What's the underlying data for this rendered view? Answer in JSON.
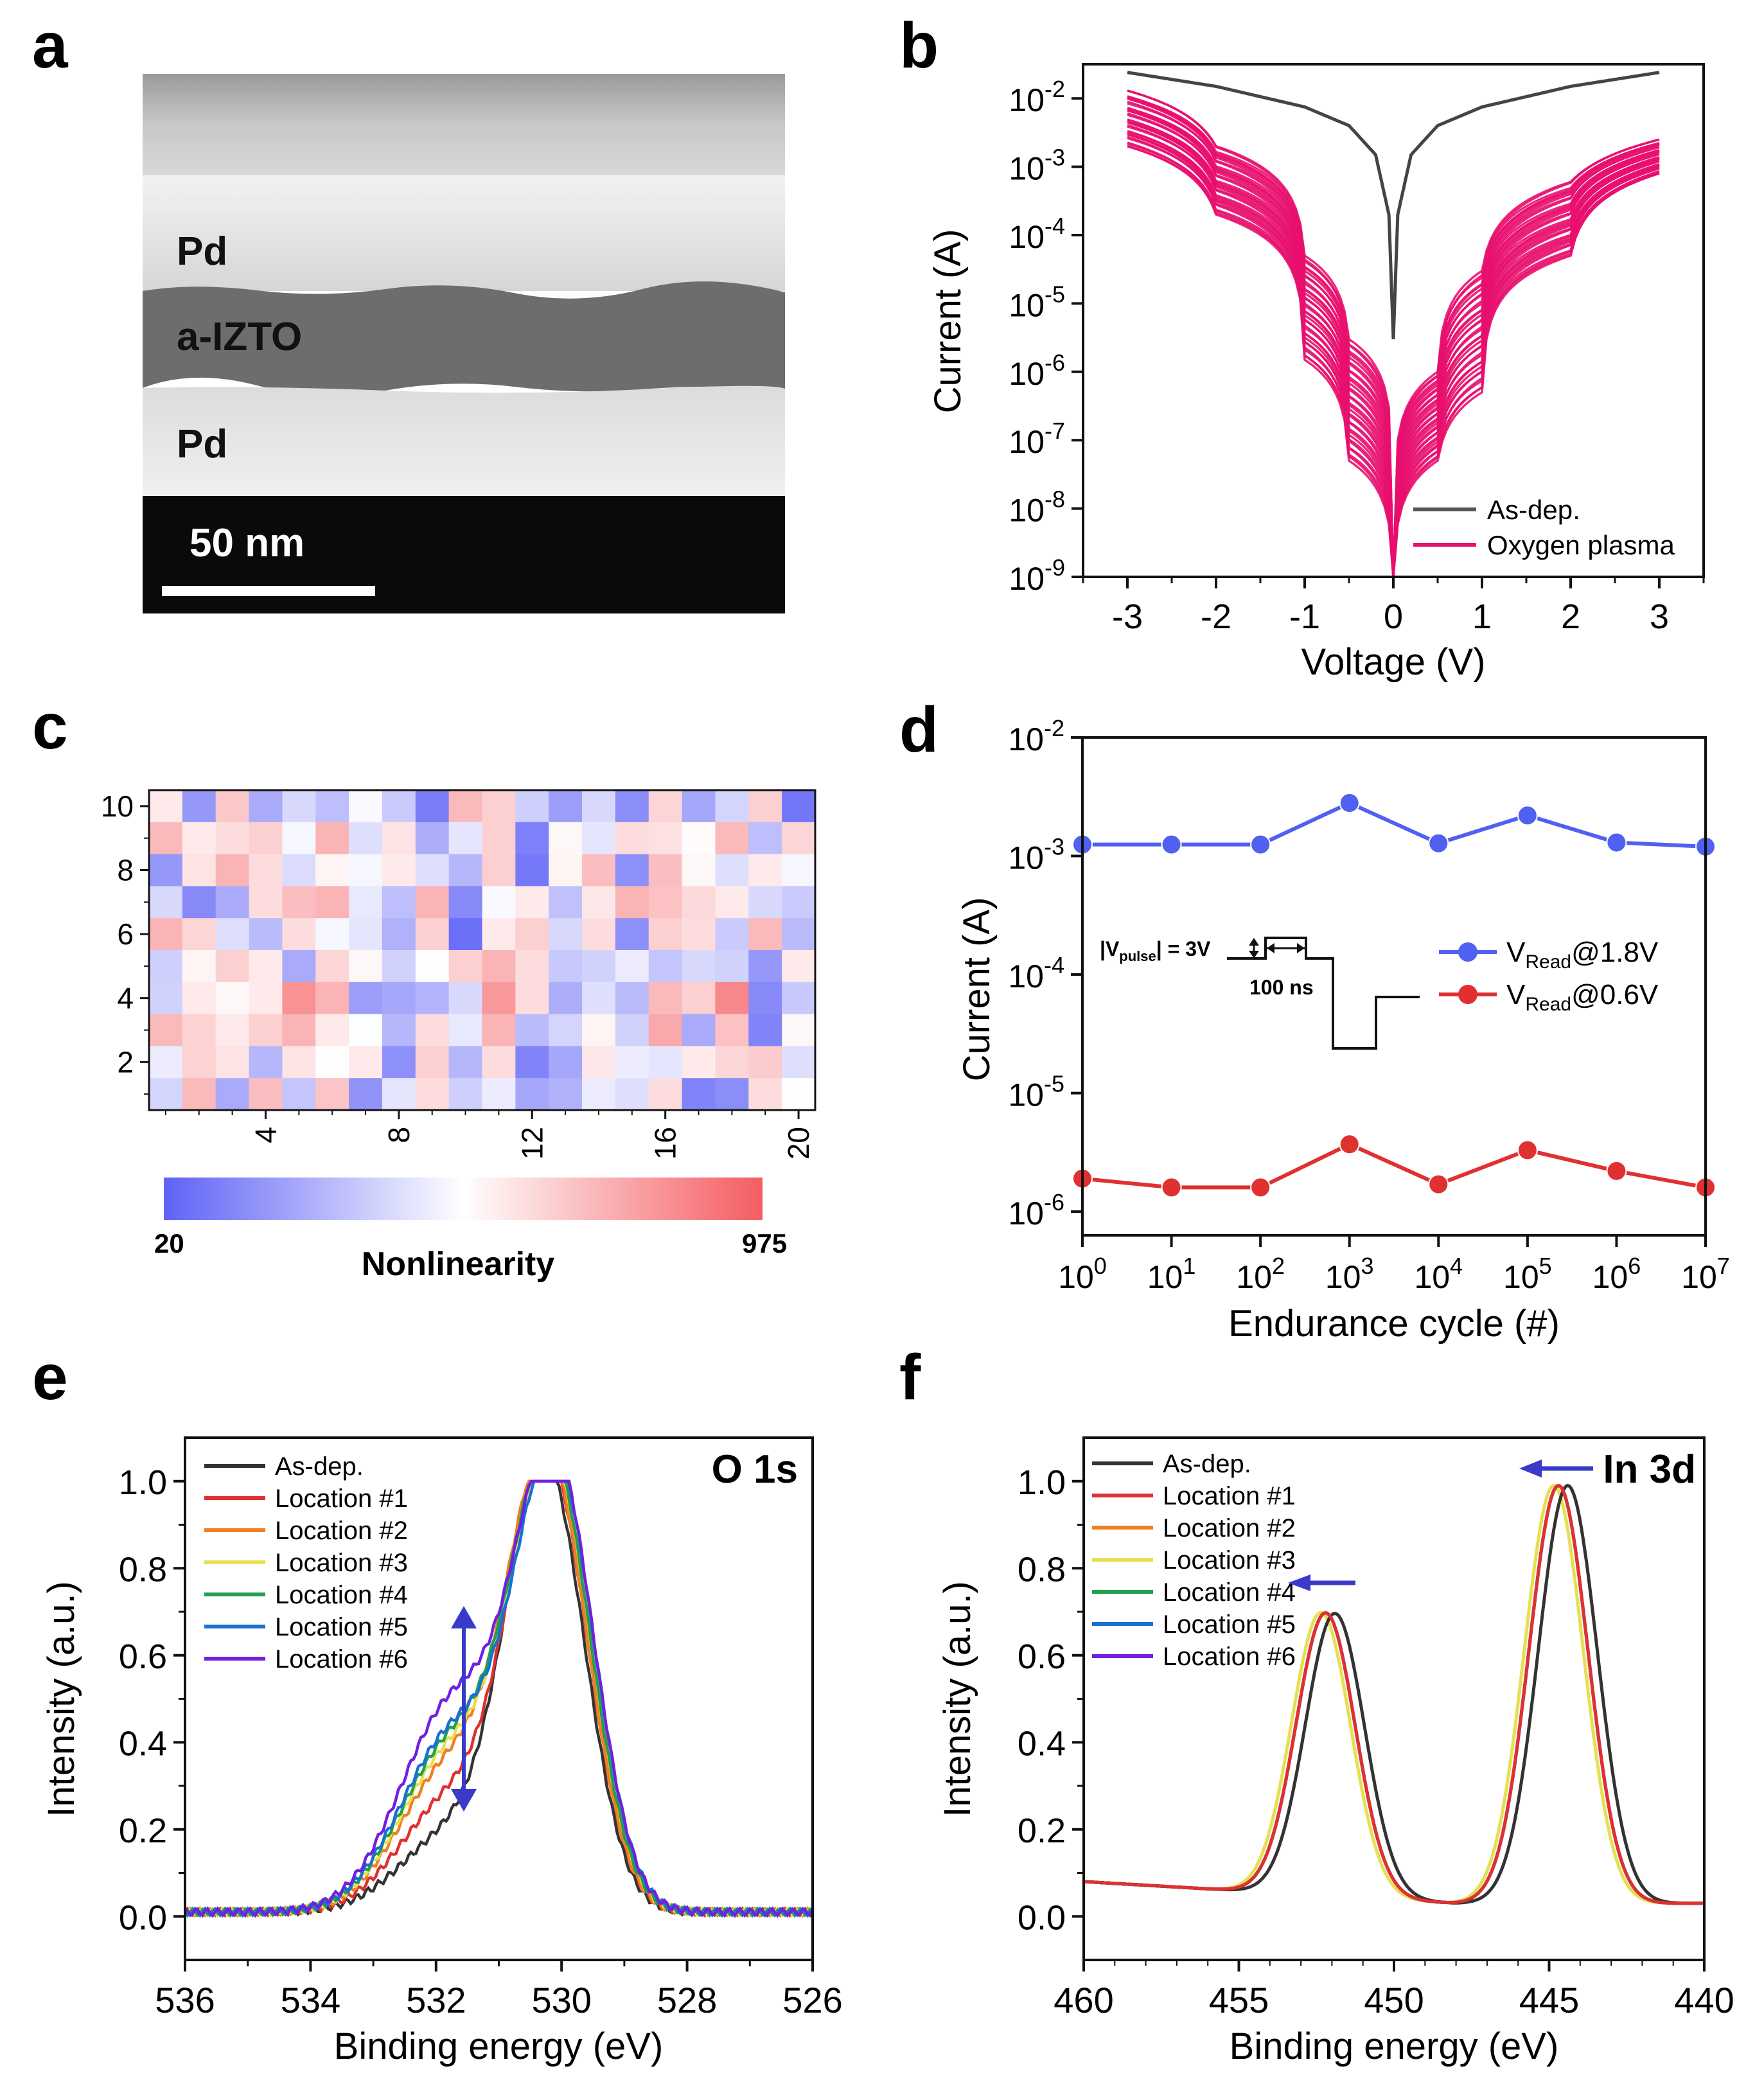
{
  "colors": {
    "black": "#1a1a1a",
    "magenta": "#e8106e",
    "blue": "#5060f0",
    "red": "#e03030",
    "heat_low": "#5f62f6",
    "heat_mid": "#ffffff",
    "heat_high": "#f45d62",
    "loc1": "#e03030",
    "loc2": "#f08020",
    "loc3": "#e6e050",
    "loc4": "#20a050",
    "loc5": "#1a70d0",
    "loc6": "#7020e0",
    "arrow": "#3a3ac8"
  },
  "panels": {
    "a": {
      "label": "a",
      "layer_top": "Pd",
      "layer_mid": "a-IZTO",
      "layer_bottom": "Pd",
      "scalebar": "50 nm"
    },
    "b": {
      "label": "b"
    },
    "c": {
      "label": "c",
      "cbar_min": "20",
      "cbar_max": "975",
      "cbar_title": "Nonlinearity"
    },
    "d": {
      "label": "d",
      "inset_vpulse": "|V",
      "inset_vpulse_sub": "pulse",
      "inset_vpulse_rest": "| = 3V",
      "inset_time": "100 ns"
    },
    "e": {
      "label": "e",
      "corner": "O 1s"
    },
    "f": {
      "label": "f",
      "corner": "In 3d"
    }
  },
  "chart_data": [
    {
      "id": "b",
      "type": "line",
      "xlabel": "Voltage (V)",
      "ylabel": "Current (A)",
      "xlim": [
        -3.5,
        3.5
      ],
      "ylim_log10": [
        -9,
        -1.5
      ],
      "xticks": [
        "-3",
        "-2",
        "-1",
        "0",
        "1",
        "2",
        "3"
      ],
      "yticks_exp": [
        "-9",
        "-8",
        "-7",
        "-6",
        "-5",
        "-4",
        "-3",
        "-2"
      ],
      "ytick_base": "10",
      "legend": [
        "As-dep.",
        "Oxygen plasma"
      ],
      "series": [
        {
          "name": "As-dep.",
          "x": [
            -3,
            -2,
            -1,
            -0.5,
            -0.2,
            -0.05,
            0,
            0.05,
            0.2,
            0.5,
            1,
            2,
            3
          ],
          "y": [
            0.024,
            0.015,
            0.0075,
            0.004,
            0.0015,
            0.0002,
            3e-06,
            0.0002,
            0.0015,
            0.004,
            0.0075,
            0.015,
            0.024
          ]
        },
        {
          "name": "Oxygen plasma (upper bound)",
          "x": [
            -3,
            -2,
            -1,
            -0.5,
            0,
            0.5,
            1,
            2,
            3
          ],
          "y": [
            0.013,
            0.002,
            5e-05,
            3e-06,
            1e-09,
            1e-06,
            3e-05,
            0.0006,
            0.0025
          ]
        },
        {
          "name": "Oxygen plasma (lower bound)",
          "x": [
            -3,
            -2,
            -1,
            -0.5,
            0,
            0.5,
            1,
            2,
            3
          ],
          "y": [
            0.002,
            0.0002,
            1.5e-06,
            5e-08,
            1e-09,
            5e-08,
            5e-07,
            5e-05,
            0.0008
          ]
        }
      ]
    },
    {
      "id": "c",
      "type": "heatmap",
      "cols": 20,
      "rows": 10,
      "xticks": [
        "4",
        "8",
        "12",
        "16",
        "20"
      ],
      "yticks": [
        "2",
        "4",
        "6",
        "8",
        "10"
      ],
      "vmin": 20,
      "vmax": 975,
      "values_top_to_bottom": [
        [
          560,
          180,
          660,
          240,
          380,
          300,
          480,
          340,
          100,
          700,
          640,
          350,
          200,
          380,
          150,
          620,
          230,
          370,
          640,
          80
        ],
        [
          700,
          560,
          600,
          640,
          470,
          720,
          400,
          580,
          250,
          420,
          640,
          110,
          520,
          420,
          600,
          590,
          510,
          700,
          300,
          620
        ],
        [
          180,
          580,
          720,
          600,
          390,
          530,
          470,
          560,
          400,
          280,
          640,
          90,
          530,
          690,
          160,
          690,
          520,
          400,
          560,
          470
        ],
        [
          380,
          140,
          240,
          600,
          690,
          720,
          430,
          300,
          720,
          140,
          480,
          560,
          310,
          570,
          720,
          680,
          610,
          560,
          380,
          340
        ],
        [
          720,
          620,
          400,
          290,
          600,
          470,
          420,
          260,
          640,
          60,
          560,
          640,
          380,
          600,
          160,
          640,
          600,
          340,
          700,
          290
        ],
        [
          350,
          530,
          640,
          560,
          240,
          620,
          520,
          360,
          500,
          640,
          720,
          600,
          330,
          360,
          440,
          320,
          380,
          360,
          180,
          560
        ],
        [
          360,
          560,
          520,
          560,
          820,
          720,
          200,
          230,
          270,
          380,
          800,
          600,
          250,
          400,
          290,
          700,
          640,
          850,
          140,
          330
        ],
        [
          700,
          630,
          560,
          640,
          720,
          560,
          490,
          280,
          600,
          430,
          720,
          290,
          370,
          530,
          360,
          750,
          240,
          680,
          120,
          520
        ],
        [
          440,
          630,
          580,
          280,
          580,
          500,
          560,
          160,
          640,
          280,
          600,
          120,
          230,
          570,
          440,
          420,
          560,
          620,
          650,
          400
        ],
        [
          370,
          700,
          240,
          690,
          320,
          670,
          170,
          420,
          600,
          350,
          440,
          230,
          260,
          440,
          400,
          600,
          120,
          150,
          600,
          500
        ]
      ]
    },
    {
      "id": "d",
      "type": "line",
      "xlabel": "Endurance cycle (#)",
      "ylabel": "Current (A)",
      "xlim_log10": [
        0,
        7
      ],
      "ylim_log10": [
        -6.2,
        -2
      ],
      "xtick_exp": [
        "0",
        "1",
        "2",
        "3",
        "4",
        "5",
        "6",
        "7"
      ],
      "ytick_exp": [
        "-6",
        "-5",
        "-4",
        "-3",
        "-2"
      ],
      "tick_base": "10",
      "legend": [
        {
          "pre": "V",
          "sub": "Read",
          "post": "@1.8V"
        },
        {
          "pre": "V",
          "sub": "Read",
          "post": "@0.6V"
        }
      ],
      "series": [
        {
          "name": "VRead@1.8V",
          "cycles": [
            1,
            10,
            100,
            1000,
            10000,
            100000,
            1000000,
            10000000
          ],
          "y": [
            0.00125,
            0.00125,
            0.00125,
            0.0028,
            0.00128,
            0.0022,
            0.0013,
            0.0012
          ]
        },
        {
          "name": "VRead@0.6V",
          "cycles": [
            1,
            10,
            100,
            1000,
            10000,
            100000,
            1000000,
            10000000
          ],
          "y": [
            1.9e-06,
            1.6e-06,
            1.6e-06,
            3.7e-06,
            1.7e-06,
            3.3e-06,
            2.2e-06,
            1.6e-06
          ]
        }
      ]
    },
    {
      "id": "e",
      "type": "line",
      "xlabel": "Binding energy (eV)",
      "ylabel": "Intensity (a.u.)",
      "xlim": [
        536,
        526
      ],
      "ylim": [
        -0.1,
        1.1
      ],
      "xticks": [
        "536",
        "534",
        "532",
        "530",
        "528",
        "526"
      ],
      "yticks": [
        "0.0",
        "0.2",
        "0.4",
        "0.6",
        "0.8",
        "1.0"
      ],
      "legend": [
        "As-dep.",
        "Location #1",
        "Location #2",
        "Location #3",
        "Location #4",
        "Location #5",
        "Location #6"
      ],
      "peak_center_eV": [
        530.25,
        530.2,
        530.2,
        530.15,
        530.15,
        530.1,
        530.1
      ],
      "shoulder_at_531_5_eV": [
        0.3,
        0.38,
        0.46,
        0.49,
        0.51,
        0.53,
        0.6
      ]
    },
    {
      "id": "f",
      "type": "line",
      "xlabel": "Binding energy (eV)",
      "ylabel": "Intensity (a.u.)",
      "xlim": [
        460,
        440
      ],
      "ylim": [
        -0.1,
        1.1
      ],
      "xticks": [
        "460",
        "455",
        "450",
        "445",
        "440"
      ],
      "yticks": [
        "0.0",
        "0.2",
        "0.4",
        "0.6",
        "0.8",
        "1.0"
      ],
      "legend": [
        "As-dep.",
        "Location #1",
        "Location #2",
        "Location #3",
        "Location #4",
        "Location #5",
        "Location #6"
      ],
      "peak1_eV": [
        451.9,
        452.2,
        452.2,
        452.35,
        452.2,
        452.2,
        452.2
      ],
      "peak1_height": 0.71,
      "peak2_eV": [
        444.4,
        444.7,
        444.7,
        444.85,
        444.7,
        444.7,
        444.7
      ],
      "peak2_height": 1.0
    }
  ]
}
